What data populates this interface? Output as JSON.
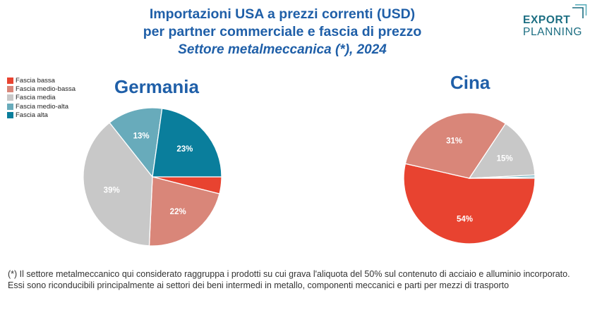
{
  "header": {
    "title_line1": "Importazioni USA a prezzi correnti (USD)",
    "title_line2": "per partner commerciale e fascia di prezzo",
    "subtitle": "Settore metalmeccanica (*), 2024"
  },
  "logo": {
    "line1": "EXPORT",
    "line2": "PLANNING"
  },
  "legend": {
    "items": [
      {
        "label": "Fascia bassa",
        "color": "#e84330"
      },
      {
        "label": "Fascia medio-bassa",
        "color": "#d98679"
      },
      {
        "label": "Fascia media",
        "color": "#c8c8c8"
      },
      {
        "label": "Fascia medio-alta",
        "color": "#68abbb"
      },
      {
        "label": "Fascia alta",
        "color": "#0a7e9c"
      }
    ]
  },
  "chart_data": [
    {
      "type": "pie",
      "title": "Germania",
      "slices": [
        {
          "category": "Fascia bassa",
          "value": 4,
          "label": ""
        },
        {
          "category": "Fascia medio-bassa",
          "value": 22,
          "label": "22%"
        },
        {
          "category": "Fascia media",
          "value": 39,
          "label": "39%"
        },
        {
          "category": "Fascia medio-alta",
          "value": 13,
          "label": "13%"
        },
        {
          "category": "Fascia alta",
          "value": 23,
          "label": "23%"
        }
      ]
    },
    {
      "type": "pie",
      "title": "Cina",
      "slices": [
        {
          "category": "Fascia bassa",
          "value": 54,
          "label": "54%"
        },
        {
          "category": "Fascia medio-bassa",
          "value": 31,
          "label": "31%"
        },
        {
          "category": "Fascia media",
          "value": 15,
          "label": "15%"
        },
        {
          "category": "Fascia medio-alta",
          "value": 0.5,
          "label": ""
        },
        {
          "category": "Fascia alta",
          "value": 0.3,
          "label": ""
        }
      ]
    }
  ],
  "footnote": {
    "text": "(*) Il settore metalmeccanico qui considerato raggruppa i prodotti su cui grava l'aliquota del 50% sul contenuto di acciaio e alluminio incorporato. Essi sono riconducibili principalmente ai settori dei beni intermedi in metallo, componenti meccanici e parti per mezzi di trasporto"
  }
}
